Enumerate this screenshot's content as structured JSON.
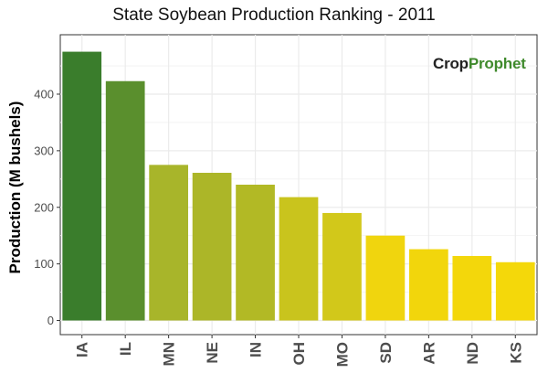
{
  "chart_data": {
    "type": "bar",
    "title": "State Soybean Production Ranking - 2011",
    "xlabel": "",
    "ylabel": "Production (M bushels)",
    "categories": [
      "IA",
      "IL",
      "MN",
      "NE",
      "IN",
      "OH",
      "MO",
      "SD",
      "AR",
      "ND",
      "KS"
    ],
    "values": [
      475,
      423,
      275,
      261,
      240,
      218,
      190,
      150,
      126,
      114,
      103
    ],
    "ylim": [
      0,
      500
    ],
    "yticks": [
      0,
      100,
      200,
      300,
      400
    ],
    "grid": true,
    "colors": [
      "#3a7d2c",
      "#5a8f2d",
      "#a8b52a",
      "#acb628",
      "#b2b925",
      "#c9c41d",
      "#d2c81a",
      "#f0d50e",
      "#f2d60c",
      "#f3d70b",
      "#f4d80a"
    ]
  },
  "logo": {
    "part1": "Crop",
    "part2": "Prophet"
  }
}
